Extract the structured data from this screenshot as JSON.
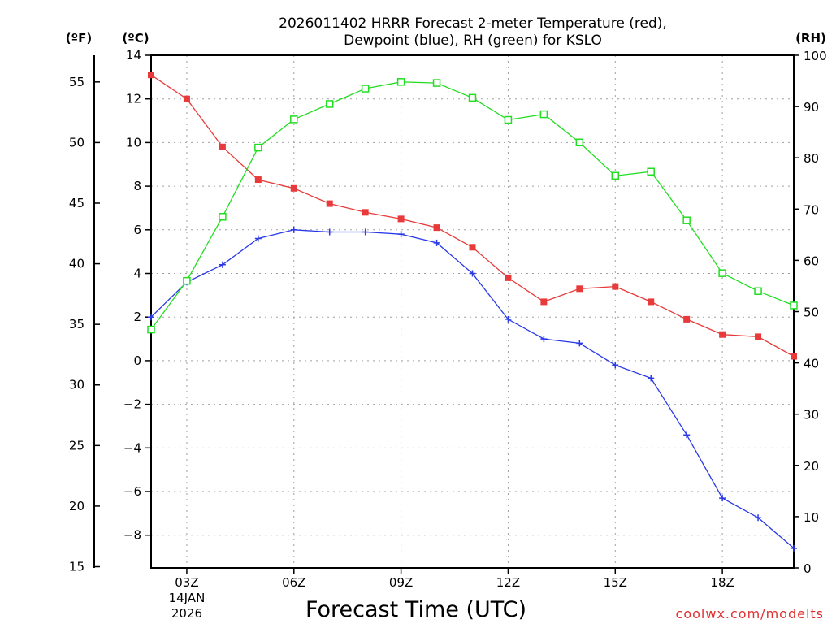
{
  "chart_data": {
    "type": "line",
    "title_line1": "2026011402 HRRR Forecast 2-meter Temperature (red),",
    "title_line2": "Dewpoint (blue), RH (green) for KSLO",
    "xlabel": "Forecast Time (UTC)",
    "credit": "coolwx.com/modelts",
    "unit_f": "(ºF)",
    "unit_c": "(ºC)",
    "unit_rh": "(RH)",
    "x": [
      2,
      3,
      4,
      5,
      6,
      7,
      8,
      9,
      10,
      11,
      12,
      13,
      14,
      15,
      16,
      17,
      18,
      19,
      20
    ],
    "xlim": [
      2,
      20
    ],
    "xticks": [
      {
        "x": 3,
        "label": "03Z",
        "sub1": "14JAN",
        "sub2": "2026"
      },
      {
        "x": 6,
        "label": "06Z"
      },
      {
        "x": 9,
        "label": "09Z"
      },
      {
        "x": 12,
        "label": "12Z"
      },
      {
        "x": 15,
        "label": "15Z"
      },
      {
        "x": 18,
        "label": "18Z"
      }
    ],
    "ylim_c": [
      -9.5,
      14
    ],
    "yticks_c": [
      14,
      12,
      10,
      8,
      6,
      4,
      2,
      0,
      -2,
      -4,
      -6,
      -8
    ],
    "yticks_c_labels": [
      "14",
      "12",
      "10",
      "8",
      "6",
      "4",
      "2",
      "0",
      "−2",
      "−4",
      "−6",
      "−8"
    ],
    "yticks_f": [
      55,
      50,
      45,
      40,
      35,
      30,
      25,
      20,
      15
    ],
    "yticks_f_labels": [
      "55",
      "50",
      "45",
      "40",
      "35",
      "30",
      "25",
      "20",
      "15"
    ],
    "ylim_rh": [
      0,
      100
    ],
    "yticks_rh": [
      100,
      90,
      80,
      70,
      60,
      50,
      40,
      30,
      20,
      10,
      0
    ],
    "yticks_rh_labels": [
      "100",
      "90",
      "80",
      "70",
      "60",
      "50",
      "40",
      "30",
      "20",
      "10",
      "0"
    ],
    "series": [
      {
        "name": "Temperature",
        "axis": "c",
        "color": "#e83a3a",
        "marker": "filled-square",
        "values": [
          13.1,
          12.0,
          9.8,
          8.3,
          7.9,
          7.2,
          6.8,
          6.5,
          6.1,
          5.2,
          3.8,
          2.7,
          3.3,
          3.4,
          2.7,
          1.9,
          1.2,
          1.1,
          0.2
        ]
      },
      {
        "name": "Dewpoint",
        "axis": "c",
        "color": "#2a3ae8",
        "marker": "plus",
        "values": [
          2.0,
          3.6,
          4.4,
          5.6,
          6.0,
          5.9,
          5.9,
          5.8,
          5.4,
          4.0,
          1.9,
          1.0,
          0.8,
          -0.2,
          -0.8,
          -3.4,
          -6.3,
          -7.2,
          -8.6
        ]
      },
      {
        "name": "RH",
        "axis": "rh",
        "color": "#22dd22",
        "marker": "open-square",
        "values": [
          46.5,
          56.0,
          68.5,
          82.0,
          87.5,
          90.5,
          93.5,
          94.8,
          94.6,
          91.7,
          87.4,
          88.5,
          83.0,
          76.5,
          77.3,
          67.8,
          57.5,
          54.0,
          51.2
        ]
      }
    ]
  }
}
